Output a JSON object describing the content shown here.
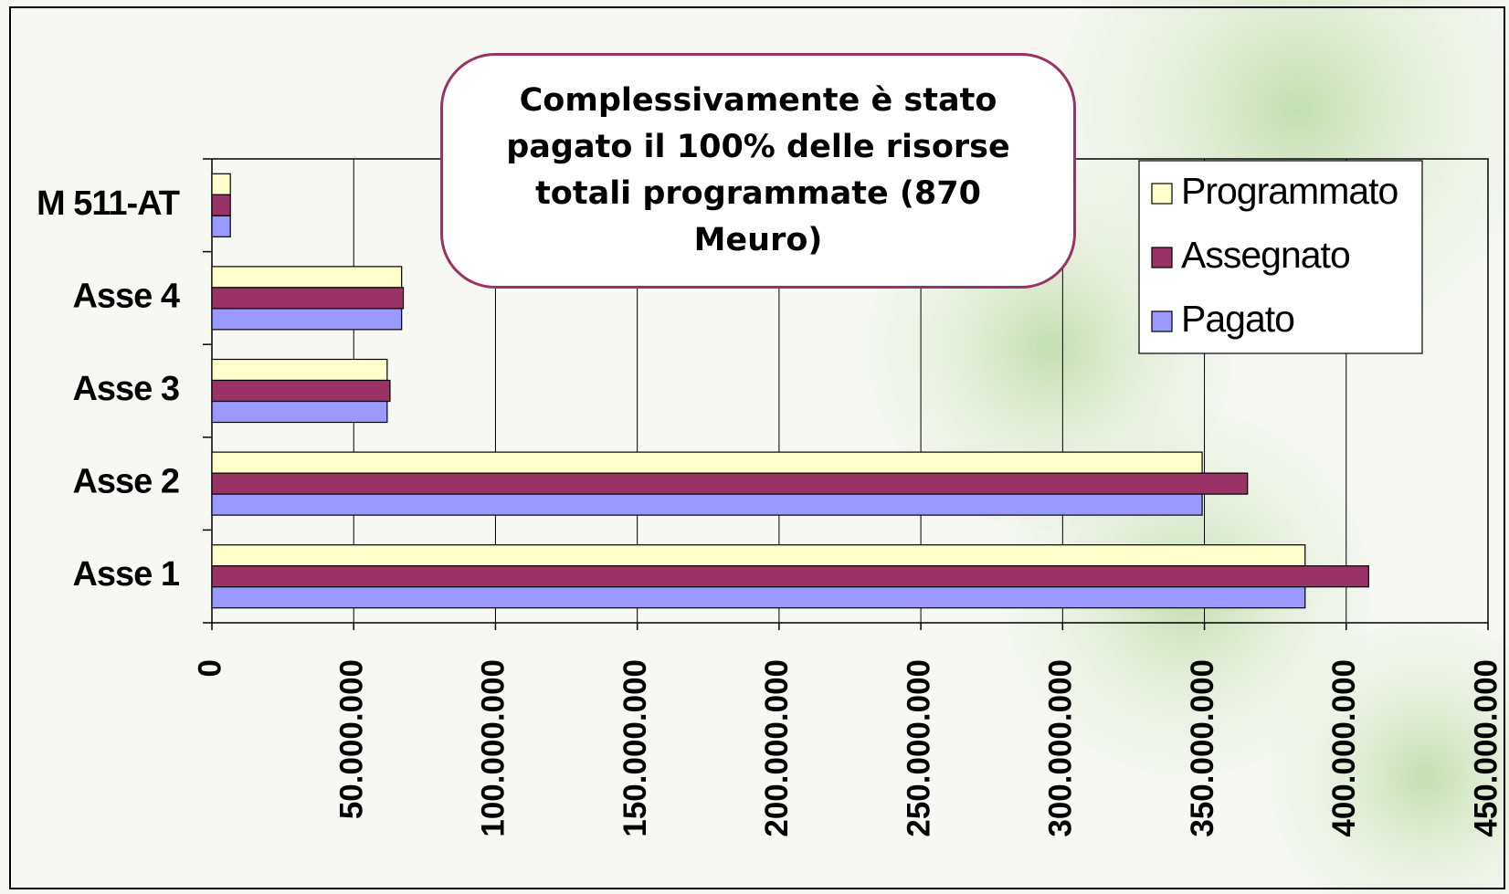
{
  "chart_data": {
    "type": "barh",
    "annotation": "Complessivamente è stato pagato il 100% delle risorse totali programmate (870 Meuro)",
    "categories": [
      "Asse 1",
      "Asse 2",
      "Asse 3",
      "Asse 4",
      "M 511-AT"
    ],
    "series": [
      {
        "name": "Programmato",
        "color": "#ffffcc",
        "values": [
          385500000,
          349200000,
          61800000,
          66900000,
          6500000
        ]
      },
      {
        "name": "Assegnato",
        "color": "#993366",
        "values": [
          407900000,
          365200000,
          62800000,
          67500000,
          6500000
        ]
      },
      {
        "name": "Pagato",
        "color": "#9999ff",
        "values": [
          385500000,
          349200000,
          61800000,
          66900000,
          6500000
        ]
      }
    ],
    "xlim": [
      0,
      450000000
    ],
    "xticks": [
      0,
      {
        "value": 50000000,
        "label": "50.000.000"
      },
      {
        "value": 100000000,
        "label": "100.000.000"
      },
      {
        "value": 150000000,
        "label": "150.000.000"
      },
      {
        "value": 200000000,
        "label": "200.000.000"
      },
      {
        "value": 250000000,
        "label": "250.000.000"
      },
      {
        "value": 300000000,
        "label": "300.000.000"
      },
      {
        "value": 350000000,
        "label": "350.000.000"
      },
      {
        "value": 400000000,
        "label": "400.000.000"
      },
      {
        "value": 450000000,
        "label": "450.000.000"
      }
    ],
    "grid": true,
    "legend": "top-right"
  }
}
